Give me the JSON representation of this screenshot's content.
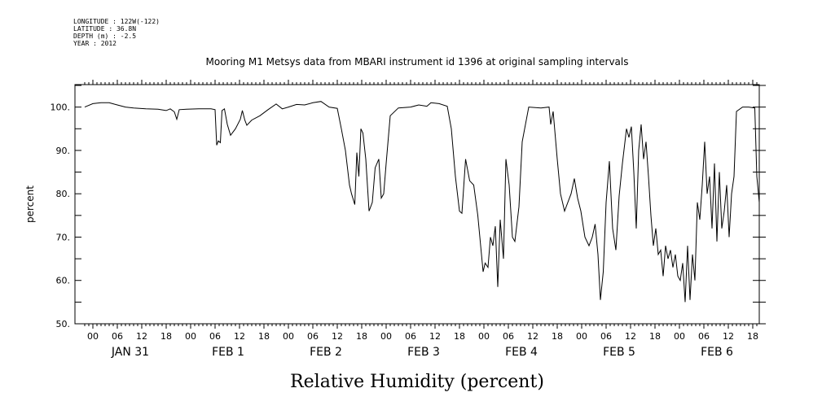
{
  "header": {
    "longitude": "LONGITUDE : 122W(-122)",
    "latitude": "LATITUDE : 36.8N",
    "depth": "DEPTH (m) : -2.5",
    "year": "YEAR : 2012"
  },
  "chart_data": {
    "type": "line",
    "title": "Mooring M1 Metsys data from MBARI instrument id 1396 at original sampling intervals",
    "xlabel": "Relative Humidity (percent)",
    "ylabel": "percent",
    "ylim": [
      50,
      100
    ],
    "y_ticks": [
      "50.",
      "60.",
      "70.",
      "80.",
      "90.",
      "100."
    ],
    "x_unit": "hours since JAN 30 22:00",
    "xlim": [
      0,
      168
    ],
    "hour_ticks": [
      "00",
      "06",
      "12",
      "18",
      "00",
      "06",
      "12",
      "18",
      "00",
      "06",
      "12",
      "18",
      "00",
      "06",
      "12",
      "18",
      "00",
      "06",
      "12",
      "18",
      "00",
      "06",
      "12",
      "18",
      "00",
      "06",
      "12",
      "18",
      "00",
      "06",
      "12",
      "18",
      "00",
      "06",
      "12",
      "18"
    ],
    "day_labels": [
      "JAN 31",
      "FEB 1",
      "FEB 2",
      "FEB 3",
      "FEB 4",
      "FEB 5",
      "FEB 6"
    ],
    "series": [
      {
        "values": [
          [
            0,
            100
          ],
          [
            2,
            100.8
          ],
          [
            4,
            101
          ],
          [
            6,
            101
          ],
          [
            8,
            100.5
          ],
          [
            10,
            100
          ],
          [
            12,
            99.8
          ],
          [
            15,
            99.6
          ],
          [
            18,
            99.5
          ],
          [
            20,
            99.2
          ],
          [
            21,
            99.6
          ],
          [
            22,
            98.9
          ],
          [
            22.6,
            97.2
          ],
          [
            23.2,
            99.4
          ],
          [
            25,
            99.5
          ],
          [
            28,
            99.6
          ],
          [
            31,
            99.6
          ],
          [
            32,
            99.4
          ],
          [
            32.4,
            91.2
          ],
          [
            32.8,
            92.2
          ],
          [
            33.3,
            91.8
          ],
          [
            33.7,
            99.2
          ],
          [
            34.3,
            99.6
          ],
          [
            35,
            96
          ],
          [
            35.8,
            93.5
          ],
          [
            37,
            95
          ],
          [
            38.2,
            97.2
          ],
          [
            38.7,
            99.2
          ],
          [
            39.3,
            97
          ],
          [
            39.8,
            95.8
          ],
          [
            41,
            97
          ],
          [
            43,
            98
          ],
          [
            45,
            99.4
          ],
          [
            47,
            100.7
          ],
          [
            48.5,
            99.6
          ],
          [
            50,
            100
          ],
          [
            52,
            100.6
          ],
          [
            54,
            100.5
          ],
          [
            56,
            101
          ],
          [
            58,
            101.3
          ],
          [
            60,
            100
          ],
          [
            62,
            99.7
          ],
          [
            63,
            95
          ],
          [
            64,
            90
          ],
          [
            65,
            82
          ],
          [
            65.5,
            80
          ],
          [
            66.3,
            77.5
          ],
          [
            66.8,
            89.5
          ],
          [
            67.3,
            84
          ],
          [
            67.8,
            95
          ],
          [
            68.3,
            94
          ],
          [
            69,
            88
          ],
          [
            69.8,
            76
          ],
          [
            70.6,
            78
          ],
          [
            71.3,
            86
          ],
          [
            72.2,
            88
          ],
          [
            72.8,
            79
          ],
          [
            73.4,
            80
          ],
          [
            74,
            87
          ],
          [
            75,
            98
          ],
          [
            77,
            99.8
          ],
          [
            80,
            100
          ],
          [
            82,
            100.5
          ],
          [
            84,
            100.2
          ],
          [
            85,
            101
          ],
          [
            87,
            100.8
          ],
          [
            89,
            100.2
          ],
          [
            90,
            95
          ],
          [
            91,
            84
          ],
          [
            92,
            76
          ],
          [
            92.6,
            75.5
          ],
          [
            93.5,
            88
          ],
          [
            94.5,
            83
          ],
          [
            95.5,
            82
          ],
          [
            96.5,
            75
          ],
          [
            97,
            70
          ],
          [
            97.8,
            62
          ],
          [
            98.3,
            64
          ],
          [
            99,
            63
          ],
          [
            99.6,
            70
          ],
          [
            100.2,
            68
          ],
          [
            100.8,
            72.5
          ],
          [
            101.4,
            58.5
          ],
          [
            102,
            74
          ],
          [
            102.8,
            65
          ],
          [
            103.4,
            88
          ],
          [
            104.2,
            82
          ],
          [
            105,
            70
          ],
          [
            105.6,
            69
          ],
          [
            106.6,
            77
          ],
          [
            107.4,
            92
          ],
          [
            109,
            100
          ],
          [
            112,
            99.8
          ],
          [
            114,
            100
          ],
          [
            114.4,
            96
          ],
          [
            115,
            99
          ],
          [
            116,
            88
          ],
          [
            116.8,
            80
          ],
          [
            117.8,
            76
          ],
          [
            118.6,
            78
          ],
          [
            119.4,
            80
          ],
          [
            120.2,
            83.5
          ],
          [
            121,
            79
          ],
          [
            121.8,
            76
          ],
          [
            122.8,
            70
          ],
          [
            123.8,
            68
          ],
          [
            124.6,
            70
          ],
          [
            125.3,
            73
          ],
          [
            126,
            66
          ],
          [
            126.6,
            55.5
          ],
          [
            127.3,
            62
          ],
          [
            128,
            78
          ],
          [
            128.8,
            87.5
          ],
          [
            129.6,
            72
          ],
          [
            130.4,
            67
          ],
          [
            131.2,
            79.5
          ],
          [
            132,
            87
          ],
          [
            133,
            95
          ],
          [
            133.6,
            93
          ],
          [
            134.2,
            95.5
          ],
          [
            134.8,
            85
          ],
          [
            135.4,
            72
          ],
          [
            136,
            90
          ],
          [
            136.6,
            96
          ],
          [
            137.2,
            88
          ],
          [
            137.8,
            92
          ],
          [
            138.4,
            84
          ],
          [
            139,
            75
          ],
          [
            139.6,
            68
          ],
          [
            140.2,
            72
          ],
          [
            140.8,
            66
          ],
          [
            141.4,
            67
          ],
          [
            142,
            61
          ],
          [
            142.6,
            68
          ],
          [
            143.2,
            65
          ],
          [
            143.8,
            67
          ],
          [
            144.4,
            63
          ],
          [
            145,
            66
          ],
          [
            145.6,
            61
          ],
          [
            146.2,
            60
          ],
          [
            146.8,
            64
          ],
          [
            147.4,
            55
          ],
          [
            148,
            68
          ],
          [
            148.6,
            55.5
          ],
          [
            149.2,
            66
          ],
          [
            149.8,
            60
          ],
          [
            150.4,
            78
          ],
          [
            151,
            74
          ],
          [
            151.6,
            82
          ],
          [
            152.2,
            92
          ],
          [
            152.8,
            80
          ],
          [
            153.4,
            84
          ],
          [
            154,
            72
          ],
          [
            154.6,
            87
          ],
          [
            155.2,
            69
          ],
          [
            155.8,
            85
          ],
          [
            156.4,
            72
          ],
          [
            157,
            76
          ],
          [
            157.6,
            82
          ],
          [
            158.2,
            70
          ],
          [
            158.8,
            80
          ],
          [
            159.4,
            84
          ],
          [
            160,
            99
          ],
          [
            161.5,
            100
          ],
          [
            163,
            100
          ],
          [
            164.5,
            99.8
          ],
          [
            165,
            84
          ],
          [
            165.7,
            78
          ],
          [
            166.4,
            72.5
          ],
          [
            167,
            84
          ],
          [
            167.5,
            98
          ]
        ]
      }
    ]
  }
}
